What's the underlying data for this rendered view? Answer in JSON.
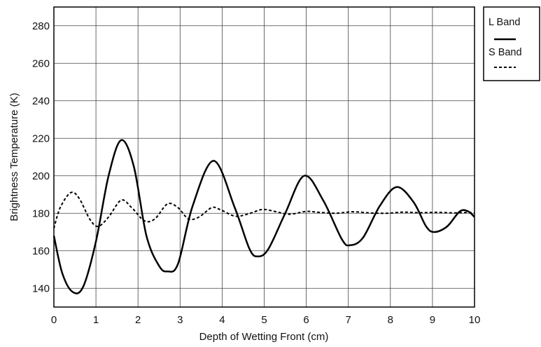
{
  "chart_data": {
    "type": "line",
    "title": "",
    "xlabel": "Depth of Wetting Front (cm)",
    "ylabel": "Brightness Temperature (K)",
    "xlim": [
      0,
      10
    ],
    "ylim": [
      130,
      290
    ],
    "xticks": [
      0,
      1,
      2,
      3,
      4,
      5,
      6,
      7,
      8,
      9,
      10
    ],
    "yticks": [
      140,
      160,
      180,
      200,
      220,
      240,
      260,
      280
    ],
    "grid": true,
    "legend_position": "outside-top-right",
    "series": [
      {
        "name": "L Band",
        "style": "solid",
        "color": "#000000",
        "x": [
          0,
          0.2,
          0.45,
          0.7,
          1.0,
          1.3,
          1.6,
          1.9,
          2.2,
          2.5,
          2.7,
          2.95,
          3.3,
          3.8,
          4.3,
          4.65,
          4.85,
          5.1,
          5.5,
          5.95,
          6.4,
          6.85,
          7.05,
          7.35,
          7.75,
          8.15,
          8.55,
          8.85,
          9.05,
          9.35,
          9.65,
          9.85,
          10.0
        ],
        "y": [
          168,
          148,
          138,
          141,
          165,
          200,
          219,
          205,
          168,
          152,
          149,
          153,
          184,
          208,
          183,
          161,
          157,
          161,
          180,
          200,
          187,
          166,
          163,
          167,
          184,
          194,
          186,
          173,
          170,
          173,
          181,
          181,
          178
        ]
      },
      {
        "name": "S Band",
        "style": "dashed",
        "color": "#000000",
        "x": [
          0,
          0.15,
          0.4,
          0.6,
          0.85,
          1.05,
          1.3,
          1.6,
          1.85,
          2.15,
          2.4,
          2.7,
          2.95,
          3.2,
          3.45,
          3.75,
          3.95,
          4.3,
          4.6,
          4.95,
          5.25,
          5.6,
          6.0,
          6.3,
          6.7,
          7.1,
          7.5,
          7.9,
          8.3,
          8.7,
          9.1,
          9.5,
          9.8,
          10.0
        ],
        "y": [
          172,
          183,
          191,
          188,
          177,
          173,
          178,
          187,
          183,
          176,
          177,
          185,
          183,
          177,
          178,
          183,
          182,
          178.5,
          179.5,
          182,
          181,
          179.5,
          181,
          180.5,
          180,
          180.8,
          180.2,
          180,
          180.6,
          180.3,
          180.5,
          180.2,
          180.4,
          180.3
        ]
      }
    ]
  },
  "legend": {
    "items": [
      {
        "label": "L Band",
        "style": "solid"
      },
      {
        "label": "S Band",
        "style": "dashed"
      }
    ]
  }
}
